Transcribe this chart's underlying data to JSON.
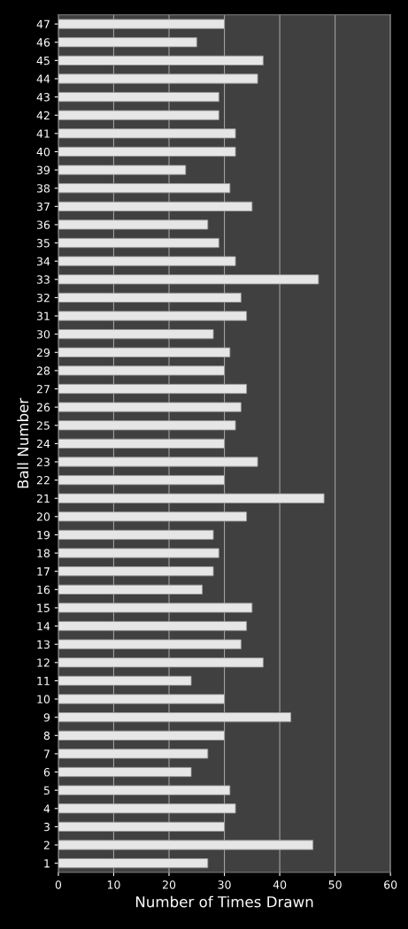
{
  "chart_data": {
    "type": "bar",
    "orientation": "horizontal",
    "xlabel": "Number of Times Drawn",
    "ylabel": "Ball Number",
    "categories": [
      "47",
      "46",
      "45",
      "44",
      "43",
      "42",
      "41",
      "40",
      "39",
      "38",
      "37",
      "36",
      "35",
      "34",
      "33",
      "32",
      "31",
      "30",
      "29",
      "28",
      "27",
      "26",
      "25",
      "24",
      "23",
      "22",
      "21",
      "20",
      "19",
      "18",
      "17",
      "16",
      "15",
      "14",
      "13",
      "12",
      "11",
      "10",
      "9",
      "8",
      "7",
      "6",
      "5",
      "4",
      "3",
      "2",
      "1"
    ],
    "values": [
      30,
      25,
      37,
      36,
      29,
      29,
      32,
      32,
      23,
      31,
      35,
      27,
      29,
      32,
      47,
      33,
      34,
      28,
      31,
      30,
      34,
      33,
      32,
      30,
      36,
      30,
      48,
      34,
      28,
      29,
      28,
      26,
      35,
      34,
      33,
      37,
      24,
      30,
      42,
      30,
      27,
      24,
      31,
      32,
      30,
      46,
      27
    ],
    "color": "#e6e6e6",
    "xlim": [
      0,
      60
    ],
    "xticks": [
      0,
      10,
      20,
      30,
      40,
      50,
      60
    ],
    "grid": "x",
    "legend": false
  }
}
